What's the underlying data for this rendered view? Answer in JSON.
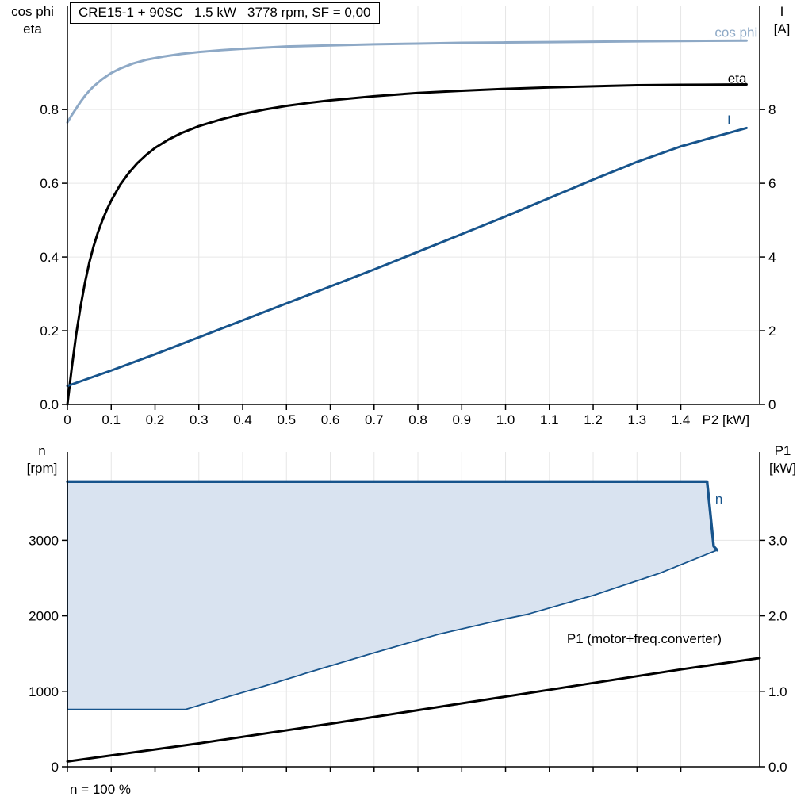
{
  "header": {
    "title": "CRE15-1 + 90SC   1.5 kW   3778 rpm, SF = 0,00"
  },
  "axes_labels": {
    "top_left_line1": "cos phi",
    "top_left_line2": "eta",
    "top_right_line1": "I",
    "top_right_line2": "[A]",
    "bottom_left_line1": "n",
    "bottom_left_line2": "[rpm]",
    "bottom_right_line1": "P1",
    "bottom_right_line2": "[kW]",
    "footnote": "n = 100 %"
  },
  "colors": {
    "cos_phi": "#8ea9c6",
    "eta": "#000000",
    "current": "#17548c",
    "area_fill": "#d9e3f0",
    "area_stroke": "#17548c",
    "grid": "#e6e6e6",
    "axis": "#000000"
  },
  "chart_data": [
    {
      "type": "line",
      "title": "CRE15-1 + 90SC   1.5 kW   3778 rpm, SF = 0,00",
      "xlabel": "P2 [kW]",
      "xlim": [
        0,
        1.58
      ],
      "x_ticks": [
        0,
        0.1,
        0.2,
        0.3,
        0.4,
        0.5,
        0.6,
        0.7,
        0.8,
        0.9,
        1.0,
        1.1,
        1.2,
        1.3,
        1.4
      ],
      "x_tick_labels": [
        "0",
        "0.1",
        "0.2",
        "0.3",
        "0.4",
        "0.5",
        "0.6",
        "0.7",
        "0.8",
        "0.9",
        "1.0",
        "1.1",
        "1.2",
        "1.3",
        "1.4"
      ],
      "left_axis": {
        "label": "cos phi / eta",
        "lim": [
          0,
          1.08
        ],
        "ticks": [
          0,
          0.2,
          0.4,
          0.6,
          0.8
        ],
        "tick_labels": [
          "0.0",
          "0.2",
          "0.4",
          "0.6",
          "0.8"
        ]
      },
      "right_axis": {
        "label": "I [A]",
        "lim": [
          0,
          10.8
        ],
        "ticks": [
          0,
          2,
          4,
          6,
          8
        ],
        "tick_labels": [
          "0",
          "2",
          "4",
          "6",
          "8"
        ]
      },
      "series": [
        {
          "name": "cos phi",
          "axis": "left",
          "color_key": "cos_phi",
          "width": 3,
          "label_at": [
            1.575,
            1.01
          ],
          "label_anchor": "end",
          "points": [
            [
              0,
              0.765
            ],
            [
              0.01,
              0.785
            ],
            [
              0.02,
              0.803
            ],
            [
              0.03,
              0.821
            ],
            [
              0.04,
              0.837
            ],
            [
              0.05,
              0.851
            ],
            [
              0.06,
              0.863
            ],
            [
              0.08,
              0.883
            ],
            [
              0.1,
              0.899
            ],
            [
              0.12,
              0.911
            ],
            [
              0.15,
              0.925
            ],
            [
              0.18,
              0.935
            ],
            [
              0.22,
              0.944
            ],
            [
              0.26,
              0.951
            ],
            [
              0.3,
              0.956
            ],
            [
              0.35,
              0.961
            ],
            [
              0.4,
              0.965
            ],
            [
              0.5,
              0.971
            ],
            [
              0.6,
              0.974
            ],
            [
              0.7,
              0.977
            ],
            [
              0.8,
              0.979
            ],
            [
              0.9,
              0.981
            ],
            [
              1,
              0.982
            ],
            [
              1.1,
              0.983
            ],
            [
              1.2,
              0.984
            ],
            [
              1.3,
              0.985
            ],
            [
              1.4,
              0.986
            ],
            [
              1.55,
              0.987
            ]
          ]
        },
        {
          "name": "eta",
          "axis": "left",
          "color_key": "eta",
          "width": 3,
          "label_at": [
            1.55,
            0.885
          ],
          "label_anchor": "end",
          "points": [
            [
              0,
              0
            ],
            [
              0.005,
              0.05
            ],
            [
              0.01,
              0.1
            ],
            [
              0.02,
              0.19
            ],
            [
              0.03,
              0.265
            ],
            [
              0.04,
              0.33
            ],
            [
              0.05,
              0.385
            ],
            [
              0.06,
              0.43
            ],
            [
              0.07,
              0.468
            ],
            [
              0.08,
              0.5
            ],
            [
              0.09,
              0.528
            ],
            [
              0.1,
              0.553
            ],
            [
              0.12,
              0.595
            ],
            [
              0.14,
              0.628
            ],
            [
              0.16,
              0.655
            ],
            [
              0.18,
              0.677
            ],
            [
              0.2,
              0.696
            ],
            [
              0.23,
              0.718
            ],
            [
              0.26,
              0.736
            ],
            [
              0.3,
              0.755
            ],
            [
              0.35,
              0.773
            ],
            [
              0.4,
              0.788
            ],
            [
              0.45,
              0.8
            ],
            [
              0.5,
              0.81
            ],
            [
              0.55,
              0.818
            ],
            [
              0.6,
              0.825
            ],
            [
              0.7,
              0.836
            ],
            [
              0.8,
              0.845
            ],
            [
              0.9,
              0.851
            ],
            [
              1,
              0.856
            ],
            [
              1.1,
              0.86
            ],
            [
              1.2,
              0.863
            ],
            [
              1.3,
              0.866
            ],
            [
              1.4,
              0.867
            ],
            [
              1.55,
              0.868
            ]
          ]
        },
        {
          "name": "I",
          "axis": "right",
          "color_key": "current",
          "width": 3,
          "label_at": [
            1.51,
            7.72
          ],
          "label_anchor": "middle",
          "points": [
            [
              0,
              0.5
            ],
            [
              0.1,
              0.92
            ],
            [
              0.2,
              1.36
            ],
            [
              0.3,
              1.82
            ],
            [
              0.4,
              2.28
            ],
            [
              0.5,
              2.74
            ],
            [
              0.6,
              3.2
            ],
            [
              0.7,
              3.66
            ],
            [
              0.8,
              4.14
            ],
            [
              0.9,
              4.62
            ],
            [
              1,
              5.1
            ],
            [
              1.1,
              5.6
            ],
            [
              1.2,
              6.1
            ],
            [
              1.3,
              6.58
            ],
            [
              1.4,
              7.0
            ],
            [
              1.55,
              7.5
            ]
          ]
        }
      ]
    },
    {
      "type": "area-line",
      "title": "",
      "xlabel": "",
      "xlim": [
        0,
        1.58
      ],
      "x_ticks": [
        0,
        0.1,
        0.2,
        0.3,
        0.4,
        0.5,
        0.6,
        0.7,
        0.8,
        0.9,
        1.0,
        1.1,
        1.2,
        1.3,
        1.4
      ],
      "x_tick_labels": [],
      "left_axis": {
        "label": "n [rpm]",
        "lim": [
          0,
          4170
        ],
        "ticks": [
          0,
          1000,
          2000,
          3000
        ],
        "tick_labels": [
          "0",
          "1000",
          "2000",
          "3000"
        ]
      },
      "right_axis": {
        "label": "P1 [kW]",
        "lim": [
          0,
          4.17
        ],
        "ticks": [
          0,
          1,
          2,
          3
        ],
        "tick_labels": [
          "0.0",
          "1.0",
          "2.0",
          "3.0"
        ]
      },
      "area": {
        "name": "n",
        "label_at": [
          1.487,
          3550
        ],
        "rated_speed_rpm": 3778,
        "points_upper": [
          [
            0,
            3778
          ],
          [
            1.46,
            3778
          ],
          [
            1.475,
            2920
          ],
          [
            1.483,
            2870
          ]
        ],
        "points_lower": [
          [
            0,
            760
          ],
          [
            0.27,
            760
          ],
          [
            0.35,
            900
          ],
          [
            0.45,
            1070
          ],
          [
            0.55,
            1250
          ],
          [
            0.7,
            1510
          ],
          [
            0.85,
            1760
          ],
          [
            1,
            1960
          ],
          [
            1.05,
            2020
          ],
          [
            1.2,
            2270
          ],
          [
            1.35,
            2560
          ],
          [
            1.483,
            2870
          ]
        ]
      },
      "series": [
        {
          "name": "P1 (motor+freq.converter)",
          "axis": "right",
          "color_key": "eta",
          "width": 3,
          "label_at": [
            1.14,
            1.7
          ],
          "label_anchor": "start",
          "points": [
            [
              0,
              0.07
            ],
            [
              0.3,
              0.31
            ],
            [
              0.6,
              0.57
            ],
            [
              0.9,
              0.84
            ],
            [
              1.2,
              1.11
            ],
            [
              1.4,
              1.29
            ],
            [
              1.58,
              1.44
            ]
          ]
        }
      ],
      "footnote": "n = 100 %"
    }
  ]
}
